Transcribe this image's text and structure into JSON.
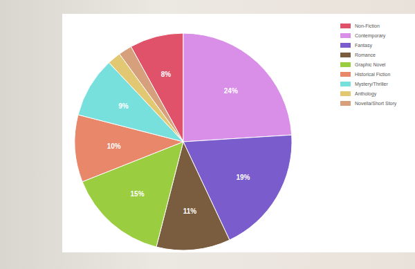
{
  "chart_data": {
    "type": "pie",
    "categories": [
      "Non-Fiction",
      "Contemporary",
      "Fantasy",
      "Romance",
      "Graphic Novel",
      "Historical Fiction",
      "Mystery/Thriller",
      "Anthology",
      "Novella/Short Story"
    ],
    "values": [
      8,
      24,
      19,
      11,
      15,
      10,
      9,
      2,
      2
    ],
    "value_labels": [
      "8%",
      "24%",
      "19%",
      "11%",
      "15%",
      "10%",
      "9%",
      null,
      null
    ],
    "colors": [
      "#e0526a",
      "#d98fe8",
      "#7b5ccc",
      "#7a5c3e",
      "#9acd40",
      "#e8876a",
      "#78e0dc",
      "#e2c872",
      "#d6a07c"
    ],
    "data_labels": true,
    "legend": "upper right"
  }
}
